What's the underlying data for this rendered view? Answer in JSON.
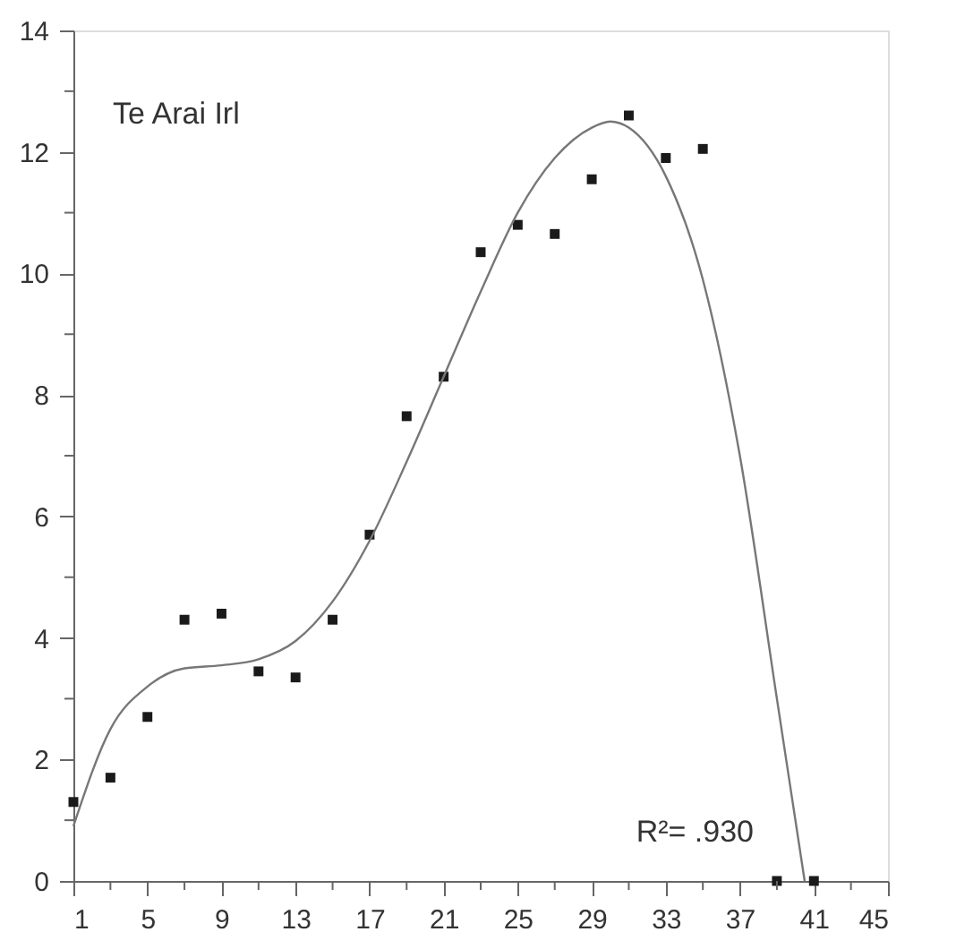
{
  "chart_data": {
    "type": "scatter",
    "title": "Te Arai Irl",
    "x": [
      1,
      3,
      5,
      7,
      9,
      11,
      13,
      15,
      17,
      19,
      21,
      23,
      25,
      27,
      29,
      31,
      33,
      35,
      39,
      41
    ],
    "series": [
      {
        "type": "scatter",
        "color": "#1a1a1a",
        "marker": "square",
        "values": [
          1.3,
          1.7,
          2.7,
          4.3,
          4.4,
          3.45,
          3.35,
          4.3,
          5.7,
          7.65,
          8.3,
          10.35,
          10.8,
          10.65,
          11.55,
          12.6,
          11.9,
          12.05,
          0,
          0
        ]
      },
      {
        "type": "line",
        "color": "#777777",
        "marker": "none",
        "line_style": "solid",
        "x": [
          1,
          3,
          5,
          7,
          9,
          11,
          13,
          15,
          17,
          19,
          21,
          23,
          25,
          27,
          29,
          30,
          31,
          33,
          35,
          37,
          39,
          40.5
        ],
        "values": [
          0.9,
          2.5,
          3.2,
          3.5,
          3.55,
          3.65,
          3.95,
          4.6,
          5.6,
          6.9,
          8.3,
          9.7,
          11.0,
          11.9,
          12.4,
          12.5,
          12.4,
          11.6,
          9.9,
          7.0,
          3.0,
          0
        ]
      }
    ],
    "annotations": [
      "R²= .930"
    ],
    "xlim": [
      1,
      45
    ],
    "ylim": [
      0,
      14
    ],
    "xticks": [
      1,
      {
        "value": 3,
        "label": null
      },
      5,
      {
        "value": 7,
        "label": null
      },
      9,
      {
        "value": 11,
        "label": null
      },
      13,
      {
        "value": 15,
        "label": null
      },
      17,
      {
        "value": 19,
        "label": null
      },
      21,
      {
        "value": 23,
        "label": null
      },
      25,
      {
        "value": 27,
        "label": null
      },
      29,
      {
        "value": 31,
        "label": null
      },
      33,
      {
        "value": 35,
        "label": null
      },
      37,
      {
        "value": 39,
        "label": null
      },
      41,
      {
        "value": 43,
        "label": null
      },
      45
    ],
    "yticks": [
      0,
      {
        "value": 1,
        "label": null
      },
      2,
      {
        "value": 3,
        "label": null
      },
      4,
      {
        "value": 5,
        "label": null
      },
      6,
      {
        "value": 7,
        "label": null
      },
      8,
      {
        "value": 9,
        "label": null
      },
      10,
      {
        "value": 11,
        "label": null
      },
      12,
      {
        "value": 13,
        "label": null
      },
      14
    ],
    "grid": false
  }
}
